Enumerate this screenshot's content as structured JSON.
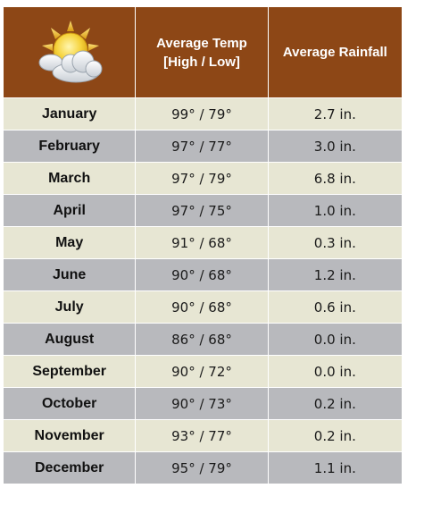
{
  "header": {
    "icon": "sun-cloud-icon",
    "temp_label_line1": "Average Temp",
    "temp_label_line2": "[High / Low]",
    "rain_label": "Average Rainfall"
  },
  "colors": {
    "header_bg": "#8d4716",
    "row_light": "#e7e6d3",
    "row_dark": "#b8b9bd"
  },
  "rows": [
    {
      "month": "January",
      "temp": "99° / 79°",
      "rain": "2.7 in."
    },
    {
      "month": "February",
      "temp": "97° / 77°",
      "rain": "3.0 in."
    },
    {
      "month": "March",
      "temp": "97° / 79°",
      "rain": "6.8 in."
    },
    {
      "month": "April",
      "temp": "97° / 75°",
      "rain": "1.0 in."
    },
    {
      "month": "May",
      "temp": "91° / 68°",
      "rain": "0.3 in."
    },
    {
      "month": "June",
      "temp": "90° / 68°",
      "rain": "1.2 in."
    },
    {
      "month": "July",
      "temp": "90° / 68°",
      "rain": "0.6 in."
    },
    {
      "month": "August",
      "temp": "86° / 68°",
      "rain": "0.0 in."
    },
    {
      "month": "September",
      "temp": "90° / 72°",
      "rain": "0.0 in."
    },
    {
      "month": "October",
      "temp": "90° / 73°",
      "rain": "0.2 in."
    },
    {
      "month": "November",
      "temp": "93° / 77°",
      "rain": "0.2 in."
    },
    {
      "month": "December",
      "temp": "95° / 79°",
      "rain": "1.1 in."
    }
  ]
}
